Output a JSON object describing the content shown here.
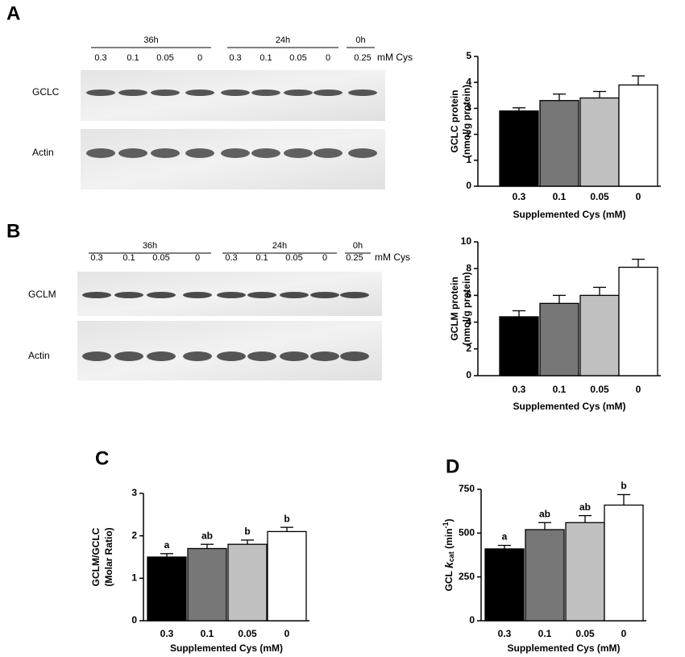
{
  "panel_labels": [
    "A",
    "B",
    "C",
    "D"
  ],
  "blots": [
    {
      "groups": [
        "36h",
        "24h",
        "0h"
      ],
      "lanes": [
        "0.3",
        "0.1",
        "0.05",
        "0",
        "0.3",
        "0.1",
        "0.05",
        "0",
        "0.25"
      ],
      "unit": "mM Cys",
      "rows": [
        "GCLC",
        "Actin"
      ]
    },
    {
      "groups": [
        "36h",
        "24h",
        "0h"
      ],
      "lanes": [
        "0.3",
        "0.1",
        "0.05",
        "0",
        "0.3",
        "0.1",
        "0.05",
        "0",
        "0.25"
      ],
      "unit": "mM Cys",
      "rows": [
        "GCLM",
        "Actin"
      ]
    }
  ],
  "chart_data": [
    {
      "type": "bar",
      "ylabel": [
        "GCLC protein",
        "(nmol/g protein)"
      ],
      "xlabel": "Supplemented Cys (mM)",
      "categories": [
        "0.3",
        "0.1",
        "0.05",
        "0"
      ],
      "values": [
        2.9,
        3.3,
        3.4,
        3.9
      ],
      "errors": [
        0.12,
        0.25,
        0.25,
        0.35
      ],
      "colors": [
        "#000000",
        "#777777",
        "#c0c0c0",
        "#ffffff"
      ],
      "ylim": [
        0,
        5
      ],
      "yticks": [
        0,
        1,
        2,
        3,
        4,
        5
      ]
    },
    {
      "type": "bar",
      "ylabel": [
        "GCLM protein",
        "(nmol/g protein)"
      ],
      "xlabel": "Supplemented Cys (mM)",
      "categories": [
        "0.3",
        "0.1",
        "0.05",
        "0"
      ],
      "values": [
        4.4,
        5.4,
        6.0,
        8.1
      ],
      "errors": [
        0.45,
        0.6,
        0.6,
        0.6
      ],
      "colors": [
        "#000000",
        "#777777",
        "#c0c0c0",
        "#ffffff"
      ],
      "ylim": [
        0,
        10
      ],
      "yticks": [
        0,
        2,
        4,
        6,
        8,
        10
      ]
    },
    {
      "type": "bar",
      "ylabel": [
        "GCLM/GCLC",
        "(Molar Ratio)"
      ],
      "xlabel": "Supplemented Cys (mM)",
      "categories": [
        "0.3",
        "0.1",
        "0.05",
        "0"
      ],
      "values": [
        1.5,
        1.7,
        1.8,
        2.1
      ],
      "errors": [
        0.08,
        0.1,
        0.1,
        0.1
      ],
      "annotations": [
        "a",
        "ab",
        "b",
        "b"
      ],
      "colors": [
        "#000000",
        "#777777",
        "#c0c0c0",
        "#ffffff"
      ],
      "ylim": [
        0,
        3
      ],
      "yticks": [
        0,
        1,
        2,
        3
      ]
    },
    {
      "type": "bar",
      "ylabel": [
        "GCL ",
        "k",
        "cat",
        " (min",
        "-1",
        ")"
      ],
      "xlabel": "Supplemented Cys (mM)",
      "categories": [
        "0.3",
        "0.1",
        "0.05",
        "0"
      ],
      "values": [
        410,
        520,
        560,
        660
      ],
      "errors": [
        20,
        40,
        40,
        60
      ],
      "annotations": [
        "a",
        "ab",
        "ab",
        "b"
      ],
      "colors": [
        "#000000",
        "#777777",
        "#c0c0c0",
        "#ffffff"
      ],
      "ylim": [
        0,
        750
      ],
      "yticks": [
        0,
        250,
        500,
        750
      ]
    }
  ]
}
